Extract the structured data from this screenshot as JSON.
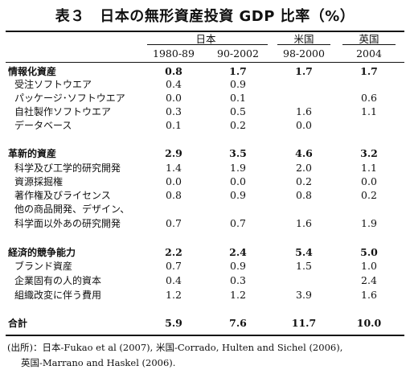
{
  "title": "表３　日本の無形資産投資 GDP 比率（%）",
  "header": {
    "japan": "日本",
    "usa": "米国",
    "uk": "英国",
    "periods": [
      "1980-89",
      "90-2002",
      "98-2000",
      "2004"
    ]
  },
  "categories": [
    {
      "label": "情報化資産",
      "values": [
        "0.8",
        "1.7",
        "1.7",
        "1.7"
      ],
      "items": [
        {
          "label": "受注ソフトウエア",
          "values": [
            "0.4",
            "0.9",
            "",
            ""
          ]
        },
        {
          "label": "パッケージ･ソフトウエア",
          "values": [
            "0.0",
            "0.1",
            "",
            "0.6"
          ]
        },
        {
          "label": "自社製作ソフトウエア",
          "values": [
            "0.3",
            "0.5",
            "1.6",
            "1.1"
          ]
        },
        {
          "label": "データベース",
          "values": [
            "0.1",
            "0.2",
            "0.0",
            ""
          ]
        }
      ]
    },
    {
      "label": "革新的資産",
      "values": [
        "2.9",
        "3.5",
        "4.6",
        "3.2"
      ],
      "items": [
        {
          "label": "科学及び工学的研究開発",
          "values": [
            "1.4",
            "1.9",
            "2.0",
            "1.1"
          ]
        },
        {
          "label": "資源採掘権",
          "values": [
            "0.0",
            "0.0",
            "0.2",
            "0.0"
          ]
        },
        {
          "label": "著作権及びライセンス",
          "values": [
            "0.8",
            "0.9",
            "0.8",
            "0.2"
          ]
        },
        {
          "label": "他の商品開発、デザイン、",
          "values": [
            "",
            "",
            "",
            ""
          ]
        },
        {
          "label": "科学面以外あの研究開発",
          "values": [
            "0.7",
            "0.7",
            "1.6",
            "1.9"
          ]
        }
      ]
    },
    {
      "label": "経済的競争能力",
      "values": [
        "2.2",
        "2.4",
        "5.4",
        "5.0"
      ],
      "items": [
        {
          "label": "ブランド資産",
          "values": [
            "0.7",
            "0.9",
            "1.5",
            "1.0"
          ]
        },
        {
          "label": "企業固有の人的資本",
          "values": [
            "0.4",
            "0.3",
            "",
            "2.4"
          ]
        },
        {
          "label": "組織改変に伴う費用",
          "values": [
            "1.2",
            "1.2",
            "3.9",
            "1.6"
          ]
        }
      ]
    }
  ],
  "total": {
    "label": "合計",
    "values": [
      "5.9",
      "7.6",
      "11.7",
      "10.0"
    ]
  },
  "source": {
    "line1": "(出所)：日本-Fukao et al (2007), 米国-Corrado, Hulten and Sichel (2006),",
    "line2": "英国-Marrano and Haskel (2006)."
  }
}
